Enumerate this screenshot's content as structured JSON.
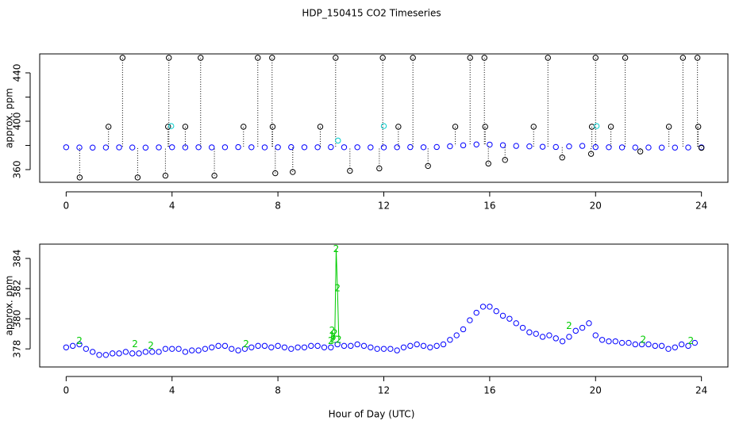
{
  "chart_data": [
    {
      "type": "scatter",
      "title": "HDP_150415  CO2 Timeseries",
      "ylabel": "approx. ppm",
      "xlim": [
        -1,
        25
      ],
      "ylim": [
        349.5,
        455.7
      ],
      "xticks": [
        0,
        4,
        8,
        12,
        16,
        20,
        24
      ],
      "yticks": [
        360,
        400,
        440
      ],
      "yminor_ticks": [
        380,
        420
      ],
      "series": [
        {
          "color": "#0000ff",
          "symbol": "o",
          "x": [
            0,
            0.5,
            1,
            1.5,
            2,
            2.5,
            3,
            3.5,
            4,
            4.5,
            5,
            5.5,
            6,
            6.5,
            7,
            7.5,
            8,
            8.5,
            9,
            9.5,
            10,
            10.5,
            11,
            11.5,
            12,
            12.5,
            13,
            13.5,
            14,
            14.5,
            15,
            15.5,
            16,
            16.5,
            17,
            17.5,
            18,
            18.5,
            19,
            19.5,
            20,
            20.5,
            21,
            21.5,
            22,
            22.5,
            23,
            23.5,
            24
          ],
          "values": [
            378.5,
            378.3,
            378.2,
            378.3,
            378.4,
            378.3,
            378.2,
            378.4,
            378.5,
            378.4,
            378.5,
            378.4,
            378.5,
            378.6,
            378.5,
            378.4,
            378.5,
            378.6,
            378.5,
            378.5,
            378.6,
            378.5,
            378.5,
            378.4,
            378.4,
            378.5,
            378.6,
            378.5,
            378.7,
            379.3,
            380.1,
            380.8,
            380.7,
            380.2,
            379.6,
            379.2,
            378.9,
            378.7,
            379.2,
            379.6,
            378.6,
            378.5,
            378.4,
            378.3,
            378.3,
            378.2,
            378.2,
            378.3,
            378.4
          ]
        },
        {
          "color": "#000000",
          "symbol": "o",
          "drops": true,
          "x": [
            2.13,
            3.88,
            5.08,
            7.24,
            7.78,
            10.18,
            11.96,
            13.1,
            15.26,
            15.8,
            18.2,
            20.0,
            21.12,
            23.3,
            23.85,
            1.6,
            3.85,
            4.5,
            6.7,
            7.8,
            9.6,
            12.55,
            14.7,
            15.83,
            17.66,
            19.86,
            20.58,
            22.77,
            23.88,
            0.51,
            2.7,
            3.75,
            5.6,
            7.9,
            8.56,
            10.72,
            11.83,
            13.67,
            15.95,
            16.58,
            18.74,
            19.83,
            21.69,
            24.0
          ],
          "values": [
            452.5,
            452.5,
            452.5,
            452.5,
            452.5,
            452.5,
            452.5,
            452.5,
            452.5,
            452.5,
            452.5,
            452.5,
            452.5,
            452.5,
            452.5,
            395.5,
            395.5,
            395.5,
            395.5,
            395.5,
            395.5,
            395.5,
            395.5,
            395.5,
            395.5,
            395.5,
            395.5,
            395.5,
            395.5,
            353.5,
            353.5,
            355,
            355,
            357,
            358,
            359,
            361,
            363,
            365,
            368,
            370,
            373,
            375,
            378
          ]
        },
        {
          "color": "#00cccc",
          "symbol": "o",
          "x": [
            3.97,
            12.0,
            20.04,
            10.27
          ],
          "values": [
            396,
            396,
            396,
            384
          ]
        }
      ]
    },
    {
      "type": "scatter",
      "ylabel": "approx. ppm",
      "xlabel": "Hour of Day (UTC)",
      "xlim": [
        -1,
        25
      ],
      "ylim": [
        376.8,
        384.95
      ],
      "xticks": [
        0,
        4,
        8,
        12,
        16,
        20,
        24
      ],
      "yticks": [
        378,
        380,
        382,
        384
      ],
      "series": [
        {
          "color": "#0000ff",
          "symbol": "o",
          "x": [
            0,
            0.25,
            0.5,
            0.75,
            1,
            1.25,
            1.5,
            1.75,
            2,
            2.25,
            2.5,
            2.75,
            3,
            3.25,
            3.5,
            3.75,
            4,
            4.25,
            4.5,
            4.75,
            5,
            5.25,
            5.5,
            5.75,
            6,
            6.25,
            6.5,
            6.75,
            7,
            7.25,
            7.5,
            7.75,
            8,
            8.25,
            8.5,
            8.75,
            9,
            9.25,
            9.5,
            9.75,
            10,
            10.25,
            10.5,
            10.75,
            11,
            11.25,
            11.5,
            11.75,
            12,
            12.25,
            12.5,
            12.75,
            13,
            13.25,
            13.5,
            13.75,
            14,
            14.25,
            14.5,
            14.75,
            15,
            15.25,
            15.5,
            15.75,
            16,
            16.25,
            16.5,
            16.75,
            17,
            17.25,
            17.5,
            17.75,
            18,
            18.25,
            18.5,
            18.75,
            19,
            19.25,
            19.5,
            19.75,
            20,
            20.25,
            20.5,
            20.75,
            21,
            21.25,
            21.5,
            21.75,
            22,
            22.25,
            22.5,
            22.75,
            23,
            23.25,
            23.5,
            23.75
          ],
          "values": [
            378.1,
            378.2,
            378.3,
            378.0,
            377.8,
            377.6,
            377.6,
            377.7,
            377.7,
            377.8,
            377.7,
            377.7,
            377.8,
            377.8,
            377.8,
            378.0,
            378.0,
            378.0,
            377.8,
            377.9,
            377.9,
            378.0,
            378.1,
            378.2,
            378.2,
            378.0,
            377.9,
            378.0,
            378.1,
            378.2,
            378.2,
            378.1,
            378.2,
            378.1,
            378.0,
            378.1,
            378.1,
            378.2,
            378.2,
            378.1,
            378.1,
            378.3,
            378.2,
            378.2,
            378.3,
            378.2,
            378.1,
            378.0,
            378.0,
            378.0,
            377.9,
            378.1,
            378.2,
            378.3,
            378.2,
            378.1,
            378.2,
            378.3,
            378.6,
            378.9,
            379.3,
            379.9,
            380.4,
            380.8,
            380.8,
            380.5,
            380.2,
            380.0,
            379.7,
            379.4,
            379.1,
            379.0,
            378.8,
            378.9,
            378.7,
            378.5,
            378.8,
            379.2,
            379.4,
            379.7,
            378.9,
            378.6,
            378.5,
            378.5,
            378.4,
            378.4,
            378.3,
            378.3,
            378.3,
            378.2,
            378.2,
            378.0,
            378.1,
            378.3,
            378.2,
            378.4
          ]
        },
        {
          "color": "#00cc00",
          "symbol": "2",
          "lines": true,
          "x": [
            10.0,
            10.05,
            10.1,
            10.15,
            10.2,
            10.25,
            10.3
          ],
          "values": [
            378.5,
            379.2,
            378.6,
            379.0,
            384.6,
            382.0,
            378.6
          ]
        },
        {
          "color": "#00cc00",
          "symbol": "2",
          "x": [
            0.5,
            2.6,
            3.2,
            6.8,
            19.0,
            21.8,
            23.6
          ],
          "values": [
            378.5,
            378.3,
            378.2,
            378.3,
            379.5,
            378.6,
            378.5
          ]
        }
      ]
    }
  ]
}
